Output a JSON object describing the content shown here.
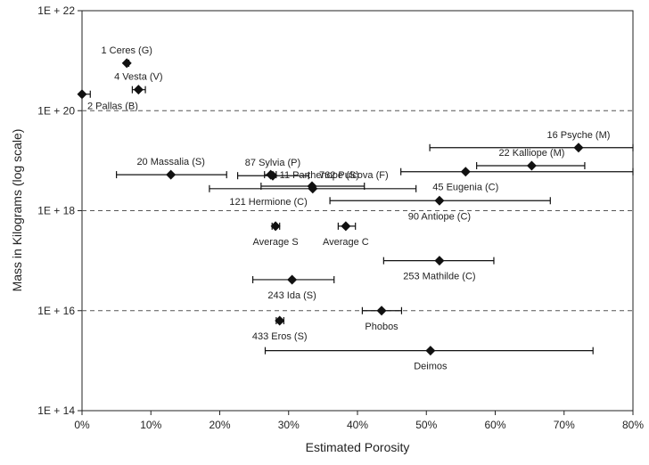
{
  "chart_data": {
    "type": "scatter",
    "title": "",
    "xlabel": "Estimated Porosity",
    "ylabel": "Mass in Kilograms (log scale)",
    "xlim": [
      0,
      0.8
    ],
    "ylim_log10": [
      14,
      22
    ],
    "x_ticks": [
      {
        "value": 0.0,
        "label": "0%"
      },
      {
        "value": 0.1,
        "label": "10%"
      },
      {
        "value": 0.2,
        "label": "20%"
      },
      {
        "value": 0.3,
        "label": "30%"
      },
      {
        "value": 0.4,
        "label": "40%"
      },
      {
        "value": 0.5,
        "label": "50%"
      },
      {
        "value": 0.6,
        "label": "60%"
      },
      {
        "value": 0.7,
        "label": "70%"
      },
      {
        "value": 0.8,
        "label": "80%"
      }
    ],
    "y_ticks": [
      {
        "value": 14,
        "label": "1E + 14"
      },
      {
        "value": 16,
        "label": "1E + 16"
      },
      {
        "value": 18,
        "label": "1E + 18"
      },
      {
        "value": 20,
        "label": "1E + 20"
      },
      {
        "value": 22,
        "label": "1E + 22"
      }
    ],
    "dashed_gridlines_log10": [
      16,
      18,
      20
    ],
    "points": [
      {
        "id": "ceres",
        "label": "1 Ceres (G)",
        "porosity": 0.065,
        "log_mass": 20.95,
        "err_low": 0.064,
        "err_high": 0.068,
        "label_anchor": "above"
      },
      {
        "id": "vesta",
        "label": "4 Vesta (V)",
        "porosity": 0.082,
        "log_mass": 20.42,
        "err_low": 0.073,
        "err_high": 0.092,
        "label_anchor": "above"
      },
      {
        "id": "pallas",
        "label": "2 Pallas (B)",
        "porosity": 0.0,
        "log_mass": 20.33,
        "err_low": 0.0,
        "err_high": 0.012,
        "label_anchor": "below-right"
      },
      {
        "id": "sylvia",
        "label": "87 Sylvia (P)",
        "porosity": 0.277,
        "log_mass": 18.7,
        "err_low": 0.226,
        "err_high": 0.329,
        "label_anchor": "above"
      },
      {
        "id": "pulcova",
        "label": "762 Pulcova (F)",
        "porosity": 0.334,
        "log_mass": 18.49,
        "err_low": 0.26,
        "err_high": 0.41,
        "label_anchor": "above-right"
      },
      {
        "id": "massalia",
        "label": "20 Massalia (S)",
        "porosity": 0.129,
        "log_mass": 18.72,
        "err_low": 0.05,
        "err_high": 0.21,
        "label_anchor": "above"
      },
      {
        "id": "parthenope",
        "label": "11 Parthenope (S)",
        "porosity": 0.274,
        "log_mass": 18.72,
        "err_low": 0.265,
        "err_high": 0.282,
        "label_anchor": "right"
      },
      {
        "id": "hermione",
        "label": "121 Hermione (C)",
        "porosity": 0.335,
        "log_mass": 18.44,
        "err_low": 0.185,
        "err_high": 0.485,
        "label_anchor": "below-left"
      },
      {
        "id": "psyche",
        "label": "16 Psyche (M)",
        "porosity": 0.721,
        "log_mass": 19.26,
        "err_low": 0.505,
        "err_high": 0.8,
        "label_anchor": "above"
      },
      {
        "id": "kalliope",
        "label": "22 Kalliope (M)",
        "porosity": 0.653,
        "log_mass": 18.9,
        "err_low": 0.573,
        "err_high": 0.73,
        "label_anchor": "above"
      },
      {
        "id": "eugenia",
        "label": "45 Eugenia (C)",
        "porosity": 0.557,
        "log_mass": 18.78,
        "err_low": 0.463,
        "err_high": 0.8,
        "label_anchor": "below"
      },
      {
        "id": "antiope",
        "label": "90 Antiope (C)",
        "porosity": 0.519,
        "log_mass": 18.2,
        "err_low": 0.36,
        "err_high": 0.68,
        "label_anchor": "below"
      },
      {
        "id": "average-s",
        "label": "Average S",
        "porosity": 0.281,
        "log_mass": 17.69,
        "err_low": 0.276,
        "err_high": 0.287,
        "label_anchor": "below"
      },
      {
        "id": "average-c",
        "label": "Average C",
        "porosity": 0.383,
        "log_mass": 17.69,
        "err_low": 0.372,
        "err_high": 0.397,
        "label_anchor": "below"
      },
      {
        "id": "mathilde",
        "label": "253 Mathilde (C)",
        "porosity": 0.519,
        "log_mass": 17.0,
        "err_low": 0.438,
        "err_high": 0.598,
        "label_anchor": "below"
      },
      {
        "id": "ida",
        "label": "243 Ida (S)",
        "porosity": 0.305,
        "log_mass": 16.62,
        "err_low": 0.248,
        "err_high": 0.366,
        "label_anchor": "below"
      },
      {
        "id": "eros",
        "label": "433 Eros (S)",
        "porosity": 0.287,
        "log_mass": 15.8,
        "err_low": 0.282,
        "err_high": 0.293,
        "label_anchor": "below"
      },
      {
        "id": "phobos",
        "label": "Phobos",
        "porosity": 0.435,
        "log_mass": 16.0,
        "err_low": 0.407,
        "err_high": 0.464,
        "label_anchor": "below"
      },
      {
        "id": "deimos",
        "label": "Deimos",
        "porosity": 0.506,
        "log_mass": 15.2,
        "err_low": 0.266,
        "err_high": 0.742,
        "label_anchor": "below"
      }
    ]
  }
}
